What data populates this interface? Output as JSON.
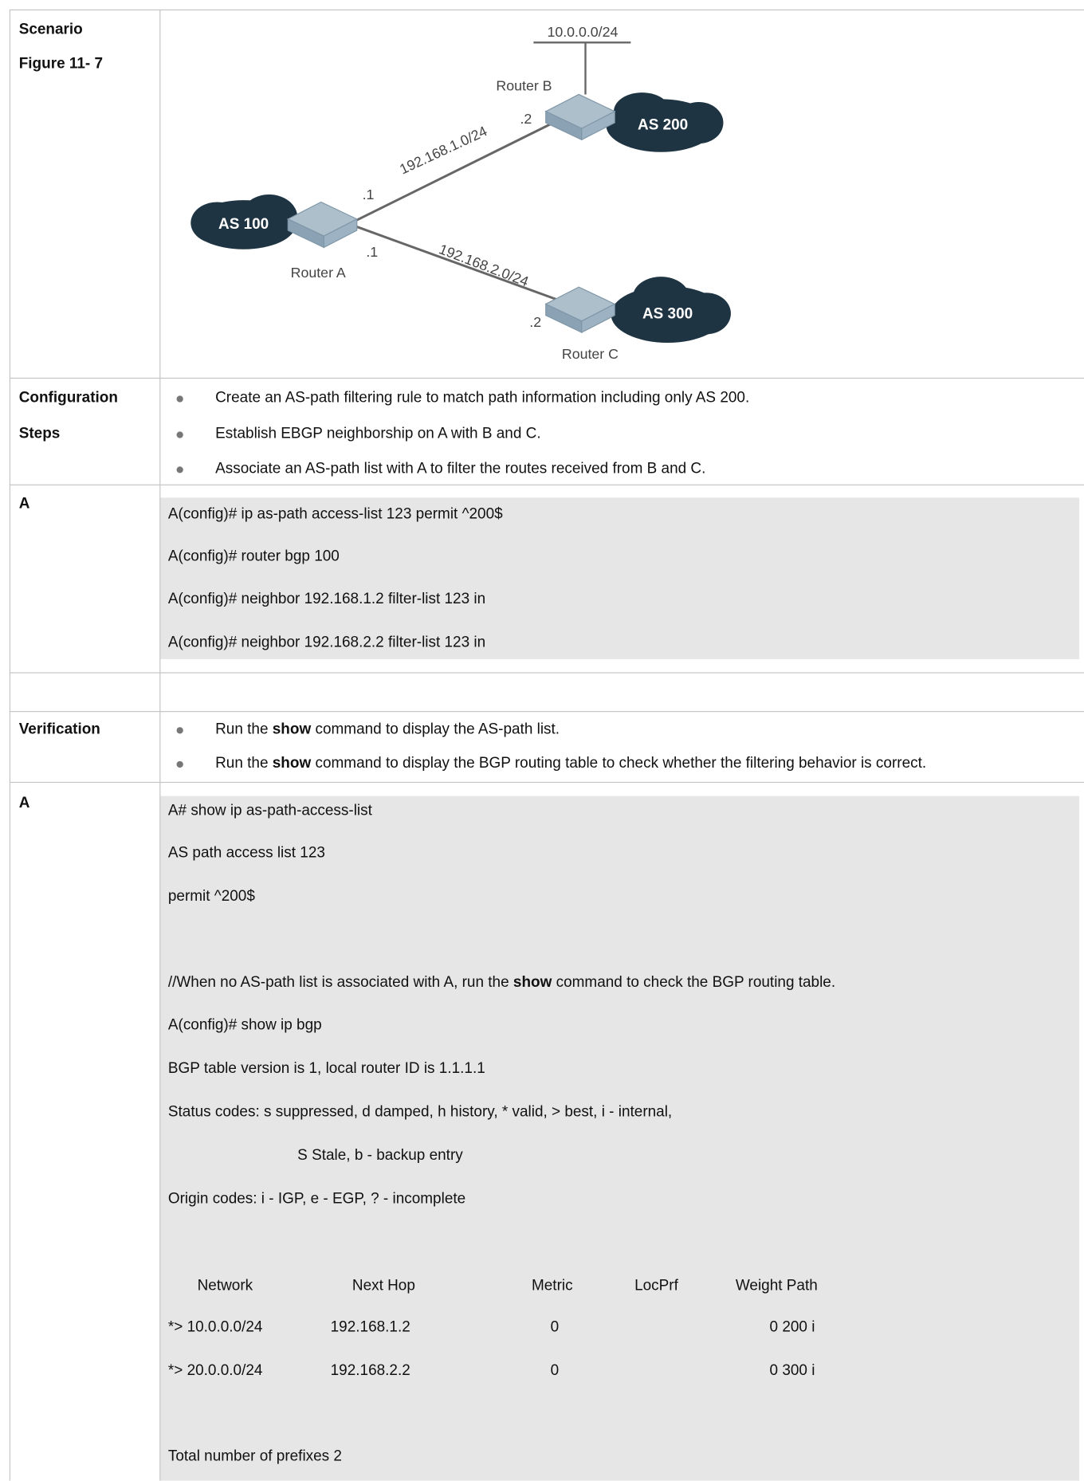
{
  "scenario": {
    "labels": [
      "Scenario",
      "Figure 11- 7"
    ],
    "figure": {
      "network_b": "10.0.0.0/24",
      "router_b": "Router B",
      "as_b": "AS 200",
      "link_ab": "192.168.1.0/24",
      "b_host": ".2",
      "a_host_ab": ".1",
      "as_a": "AS 100",
      "router_a": "Router A",
      "a_host_ac": ".1",
      "link_ac": "192.168.2.0/24",
      "c_host": ".2",
      "as_c": "AS 300",
      "router_c": "Router C"
    }
  },
  "configuration": {
    "labels": [
      "Configuration",
      "Steps"
    ],
    "bullets": [
      [
        "Create an AS-path filtering rule to match path information including only AS 200."
      ],
      [
        "Establish EBGP neighborship on A with B and C."
      ],
      [
        "Associate an AS-path list with A to filter the routes received from B and C."
      ]
    ]
  },
  "config_a": {
    "label": "A",
    "lines": [
      "A(config)# ip as-path access-list 123 permit ^200$",
      "A(config)# router bgp 100",
      "A(config)# neighbor 192.168.1.2 filter-list 123 in",
      "A(config)# neighbor 192.168.2.2 filter-list 123 in"
    ]
  },
  "verification": {
    "label": "Verification",
    "bullets": [
      [
        "Run the ",
        "show",
        " command to display the AS-path list."
      ],
      [
        "Run the ",
        "show",
        " command to display the BGP routing table to check whether the filtering behavior is correct."
      ]
    ]
  },
  "verification_a": {
    "label": "A",
    "commands": [
      "A# show ip as-path-access-list",
      "AS path access list 123",
      "permit ^200$"
    ],
    "comment": [
      "//When no AS-path list is associated with A, run the ",
      "show",
      " command to check the BGP routing table."
    ],
    "output": [
      "A(config)# show ip bgp",
      "BGP table version is 1, local router ID is 1.1.1.1",
      "Status codes: s suppressed, d damped, h history, * valid, > best, i - internal,",
      "S Stale, b - backup entry",
      "Origin codes: i - IGP, e - EGP, ? - incomplete"
    ],
    "table": {
      "header": [
        "Network",
        "Next Hop",
        "Metric",
        "LocPrf",
        "Weight Path"
      ],
      "rows": [
        [
          "*> 10.0.0.0/24",
          "192.168.1.2",
          "0",
          "0 200 i"
        ],
        [
          "*> 20.0.0.0/24",
          "192.168.2.2",
          "0",
          "0 300 i"
        ]
      ]
    },
    "total": "Total number of prefixes 2"
  }
}
